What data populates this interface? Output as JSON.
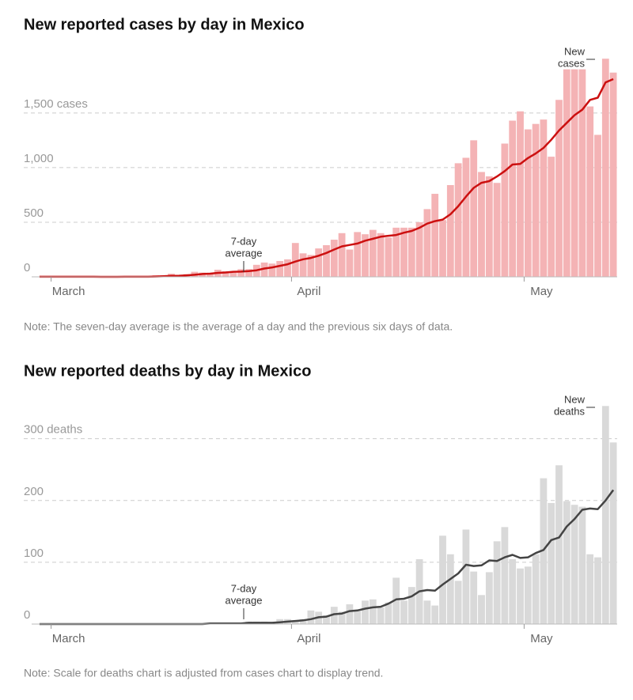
{
  "chart_data": [
    {
      "type": "bar",
      "title": "New reported cases by day in Mexico",
      "note": "Note: The seven-day average is the average of a day and the previous six days of data.",
      "annotations": {
        "average": [
          "7-day",
          "average"
        ],
        "bars": [
          "New",
          "cases"
        ]
      },
      "categories": [
        null,
        null,
        "March",
        null,
        null,
        null,
        null,
        null,
        null,
        null,
        null,
        null,
        null,
        null,
        null,
        null,
        null,
        null,
        null,
        null,
        null,
        null,
        null,
        null,
        null,
        null,
        null,
        null,
        null,
        null,
        null,
        null,
        null,
        "April",
        null,
        null,
        null,
        null,
        null,
        null,
        null,
        null,
        null,
        null,
        null,
        null,
        null,
        null,
        null,
        null,
        null,
        null,
        null,
        null,
        null,
        null,
        null,
        null,
        null,
        null,
        null,
        null,
        null,
        "May",
        null,
        null,
        null,
        null,
        null,
        null,
        null,
        null,
        null,
        null,
        null
      ],
      "ylim": [
        0,
        2100
      ],
      "yticks": [
        0,
        500,
        {
          "value": 1000,
          "label": "1,000"
        },
        {
          "value": 1500,
          "label": "1,500 cases"
        }
      ],
      "grid": true,
      "series": [
        {
          "type": "bar",
          "color": "#f4b3b5",
          "values": [
            1,
            3,
            0,
            1,
            0,
            0,
            0,
            1,
            1,
            0,
            0,
            0,
            4,
            4,
            1,
            14,
            15,
            29,
            11,
            25,
            46,
            39,
            37,
            65,
            51,
            38,
            70,
            70,
            110,
            131,
            121,
            145,
            160,
            310,
            215,
            200,
            260,
            290,
            340,
            400,
            250,
            410,
            390,
            430,
            400,
            360,
            450,
            450,
            450,
            500,
            620,
            760,
            520,
            840,
            1040,
            1090,
            1250,
            960,
            920,
            860,
            1220,
            1430,
            1515,
            1350,
            1400,
            1440,
            1100,
            1620,
            1900,
            1900,
            1900,
            1560,
            1300,
            1997,
            1870
          ]
        },
        {
          "type": "line",
          "color": "#cc1010",
          "values": [
            1,
            1,
            1,
            1,
            1,
            1,
            1,
            1,
            0,
            0,
            0,
            1,
            1,
            1,
            1,
            3,
            5,
            9,
            10,
            14,
            19,
            26,
            29,
            36,
            40,
            46,
            48,
            52,
            60,
            76,
            86,
            101,
            115,
            140,
            161,
            173,
            193,
            219,
            250,
            279,
            292,
            305,
            331,
            348,
            367,
            376,
            383,
            404,
            420,
            449,
            487,
            510,
            524,
            573,
            647,
            734,
            815,
            861,
            876,
            919,
            968,
            1028,
            1033,
            1088,
            1130,
            1180,
            1255,
            1340,
            1410,
            1480,
            1530,
            1620,
            1640,
            1780,
            1810
          ]
        }
      ]
    },
    {
      "type": "bar",
      "title": "New reported deaths by day in Mexico",
      "note": "Note: Scale for deaths chart is adjusted from cases chart to display trend.",
      "annotations": {
        "average": [
          "7-day",
          "average"
        ],
        "bars": [
          "New",
          "deaths"
        ]
      },
      "categories": [
        null,
        null,
        "March",
        null,
        null,
        null,
        null,
        null,
        null,
        null,
        null,
        null,
        null,
        null,
        null,
        null,
        null,
        null,
        null,
        null,
        null,
        null,
        null,
        null,
        null,
        null,
        null,
        null,
        null,
        null,
        null,
        null,
        null,
        "April",
        null,
        null,
        null,
        null,
        null,
        null,
        null,
        null,
        null,
        null,
        null,
        null,
        null,
        null,
        null,
        null,
        null,
        null,
        null,
        null,
        null,
        null,
        null,
        null,
        null,
        null,
        null,
        null,
        null,
        "May",
        null,
        null,
        null,
        null,
        null,
        null,
        null,
        null,
        null,
        null,
        null
      ],
      "ylim": [
        0,
        370
      ],
      "yticks": [
        0,
        100,
        200,
        {
          "value": 300,
          "label": "300 deaths"
        }
      ],
      "grid": true,
      "series": [
        {
          "type": "bar",
          "color": "#d9d9d9",
          "values": [
            0,
            0,
            0,
            0,
            0,
            0,
            0,
            0,
            0,
            0,
            0,
            0,
            0,
            0,
            0,
            0,
            0,
            0,
            0,
            1,
            1,
            0,
            2,
            1,
            2,
            0,
            2,
            4,
            4,
            4,
            2,
            8,
            8,
            6,
            8,
            22,
            20,
            14,
            28,
            20,
            32,
            21,
            38,
            40,
            27,
            35,
            75,
            38,
            60,
            105,
            38,
            30,
            143,
            113,
            70,
            153,
            85,
            47,
            84,
            134,
            157,
            105,
            90,
            93,
            113,
            236,
            196,
            257,
            199,
            193,
            190,
            113,
            108,
            353,
            294
          ]
        },
        {
          "type": "line",
          "color": "#444444",
          "values": [
            0,
            0,
            0,
            0,
            0,
            0,
            0,
            0,
            0,
            0,
            0,
            0,
            0,
            0,
            0,
            0,
            0,
            0,
            0,
            0,
            0,
            0,
            1,
            1,
            1,
            1,
            1,
            2,
            2,
            2,
            2,
            3,
            4,
            5,
            6,
            8,
            11,
            12,
            16,
            17,
            21,
            22,
            25,
            27,
            28,
            33,
            40,
            41,
            45,
            53,
            55,
            54,
            64,
            73,
            82,
            96,
            94,
            95,
            103,
            102,
            108,
            112,
            107,
            108,
            115,
            120,
            136,
            140,
            158,
            170,
            185,
            187,
            186,
            200,
            217
          ]
        }
      ]
    }
  ]
}
